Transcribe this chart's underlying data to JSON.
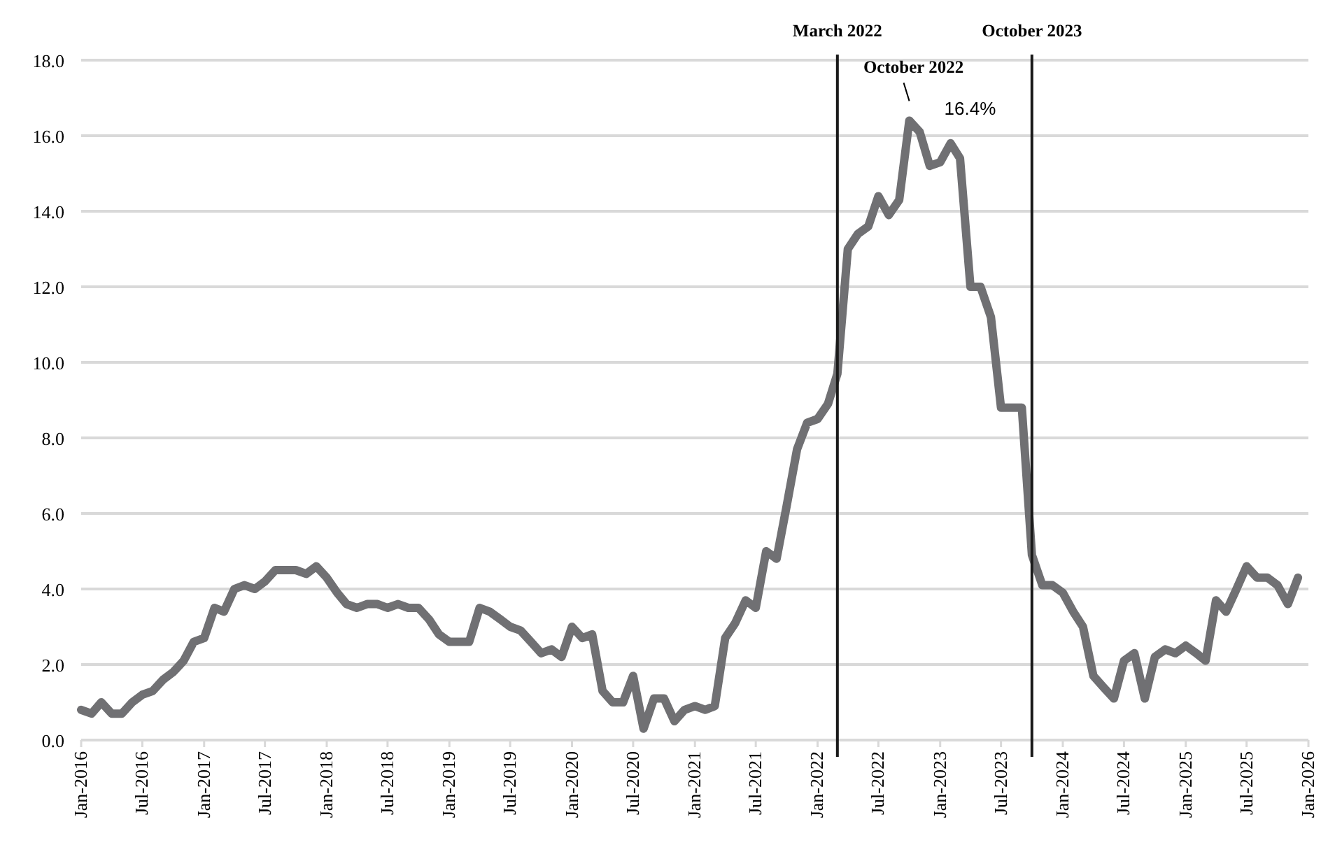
{
  "chart_data": {
    "type": "line",
    "x": [
      "2016-01",
      "2016-02",
      "2016-03",
      "2016-04",
      "2016-05",
      "2016-06",
      "2016-07",
      "2016-08",
      "2016-09",
      "2016-10",
      "2016-11",
      "2016-12",
      "2017-01",
      "2017-02",
      "2017-03",
      "2017-04",
      "2017-05",
      "2017-06",
      "2017-07",
      "2017-08",
      "2017-09",
      "2017-10",
      "2017-11",
      "2017-12",
      "2018-01",
      "2018-02",
      "2018-03",
      "2018-04",
      "2018-05",
      "2018-06",
      "2018-07",
      "2018-08",
      "2018-09",
      "2018-10",
      "2018-11",
      "2018-12",
      "2019-01",
      "2019-02",
      "2019-03",
      "2019-04",
      "2019-05",
      "2019-06",
      "2019-07",
      "2019-08",
      "2019-09",
      "2019-10",
      "2019-11",
      "2019-12",
      "2020-01",
      "2020-02",
      "2020-03",
      "2020-04",
      "2020-05",
      "2020-06",
      "2020-07",
      "2020-08",
      "2020-09",
      "2020-10",
      "2020-11",
      "2020-12",
      "2021-01",
      "2021-02",
      "2021-03",
      "2021-04",
      "2021-05",
      "2021-06",
      "2021-07",
      "2021-08",
      "2021-09",
      "2021-10",
      "2021-11",
      "2021-12",
      "2022-01",
      "2022-02",
      "2022-03",
      "2022-04",
      "2022-05",
      "2022-06",
      "2022-07",
      "2022-08",
      "2022-09",
      "2022-10",
      "2022-11",
      "2022-12",
      "2023-01",
      "2023-02",
      "2023-03",
      "2023-04",
      "2023-05",
      "2023-06",
      "2023-07",
      "2023-08",
      "2023-09",
      "2023-10",
      "2023-11",
      "2023-12",
      "2024-01",
      "2024-02",
      "2024-03",
      "2024-04",
      "2024-05",
      "2024-06",
      "2024-07",
      "2024-08",
      "2024-09",
      "2024-10",
      "2024-11",
      "2024-12",
      "2025-01",
      "2025-02",
      "2025-03",
      "2025-04",
      "2025-05",
      "2025-06",
      "2025-07",
      "2025-08",
      "2025-09",
      "2025-10",
      "2025-11",
      "2025-12"
    ],
    "series": [
      {
        "color": "#707073",
        "values": [
          0.8,
          0.7,
          1.0,
          0.7,
          0.7,
          1.0,
          1.2,
          1.3,
          1.6,
          1.8,
          2.1,
          2.6,
          2.7,
          3.5,
          3.4,
          4.0,
          4.1,
          4.0,
          4.2,
          4.5,
          4.5,
          4.5,
          4.4,
          4.6,
          4.3,
          3.9,
          3.6,
          3.5,
          3.6,
          3.6,
          3.5,
          3.6,
          3.5,
          3.5,
          3.2,
          2.8,
          2.6,
          2.6,
          2.6,
          3.5,
          3.4,
          3.2,
          3.0,
          2.9,
          2.6,
          2.3,
          2.4,
          2.2,
          3.0,
          2.7,
          2.8,
          1.3,
          1.0,
          1.0,
          1.7,
          0.3,
          1.1,
          1.1,
          0.5,
          0.8,
          0.9,
          0.8,
          0.9,
          2.7,
          3.1,
          3.7,
          3.5,
          5.0,
          4.8,
          6.2,
          7.7,
          8.4,
          8.5,
          8.9,
          9.7,
          13.0,
          13.4,
          13.6,
          14.4,
          13.9,
          14.3,
          16.4,
          16.1,
          15.2,
          15.3,
          15.8,
          15.4,
          12.0,
          12.0,
          11.2,
          8.8,
          8.8,
          8.8,
          4.9,
          4.1,
          4.1,
          3.9,
          3.4,
          3.0,
          1.7,
          1.4,
          1.1,
          2.1,
          2.3,
          1.1,
          2.2,
          2.4,
          2.3,
          2.5,
          2.3,
          2.1,
          3.7,
          3.4,
          4.0,
          4.6,
          4.3,
          4.3,
          4.1,
          3.6,
          4.3
        ]
      }
    ],
    "xlim": [
      "2016-01",
      "2026-01"
    ],
    "xticks": [
      {
        "value": "2016-01",
        "label": "Jan-2016"
      },
      {
        "value": "2016-07",
        "label": "Jul-2016"
      },
      {
        "value": "2017-01",
        "label": "Jan-2017"
      },
      {
        "value": "2017-07",
        "label": "Jul-2017"
      },
      {
        "value": "2018-01",
        "label": "Jan-2018"
      },
      {
        "value": "2018-07",
        "label": "Jul-2018"
      },
      {
        "value": "2019-01",
        "label": "Jan-2019"
      },
      {
        "value": "2019-07",
        "label": "Jul-2019"
      },
      {
        "value": "2020-01",
        "label": "Jan-2020"
      },
      {
        "value": "2020-07",
        "label": "Jul-2020"
      },
      {
        "value": "2021-01",
        "label": "Jan-2021"
      },
      {
        "value": "2021-07",
        "label": "Jul-2021"
      },
      {
        "value": "2022-01",
        "label": "Jan-2022"
      },
      {
        "value": "2022-07",
        "label": "Jul-2022"
      },
      {
        "value": "2023-01",
        "label": "Jan-2023"
      },
      {
        "value": "2023-07",
        "label": "Jul-2023"
      },
      {
        "value": "2024-01",
        "label": "Jan-2024"
      },
      {
        "value": "2024-07",
        "label": "Jul-2024"
      },
      {
        "value": "2025-01",
        "label": "Jan-2025"
      },
      {
        "value": "2025-07",
        "label": "Jul-2025"
      },
      {
        "value": "2026-01",
        "label": "Jan-2026"
      }
    ],
    "ylim": [
      0,
      18
    ],
    "yticks": [
      {
        "value": 0,
        "label": "0.0"
      },
      {
        "value": 2,
        "label": "2.0"
      },
      {
        "value": 4,
        "label": "4.0"
      },
      {
        "value": 6,
        "label": "6.0"
      },
      {
        "value": 8,
        "label": "8.0"
      },
      {
        "value": 10,
        "label": "10.0"
      },
      {
        "value": 12,
        "label": "12.0"
      },
      {
        "value": 14,
        "label": "14.0"
      },
      {
        "value": 16,
        "label": "16.0"
      },
      {
        "value": 18,
        "label": "18.0"
      }
    ],
    "grid": "y",
    "marker": "none",
    "line_style": "solid",
    "ref_lines": [
      {
        "axis": "x",
        "value": "2022-03",
        "label": "March 2022",
        "color": "#1a1a1a"
      },
      {
        "axis": "x",
        "value": "2023-10",
        "label": "October 2023",
        "color": "#1a1a1a"
      }
    ],
    "annotations": [
      {
        "text": "October 2022",
        "x": "2022-10",
        "y": 16.4
      },
      {
        "text": "16.4%",
        "x": "2022-10",
        "y": 16.4
      }
    ]
  }
}
